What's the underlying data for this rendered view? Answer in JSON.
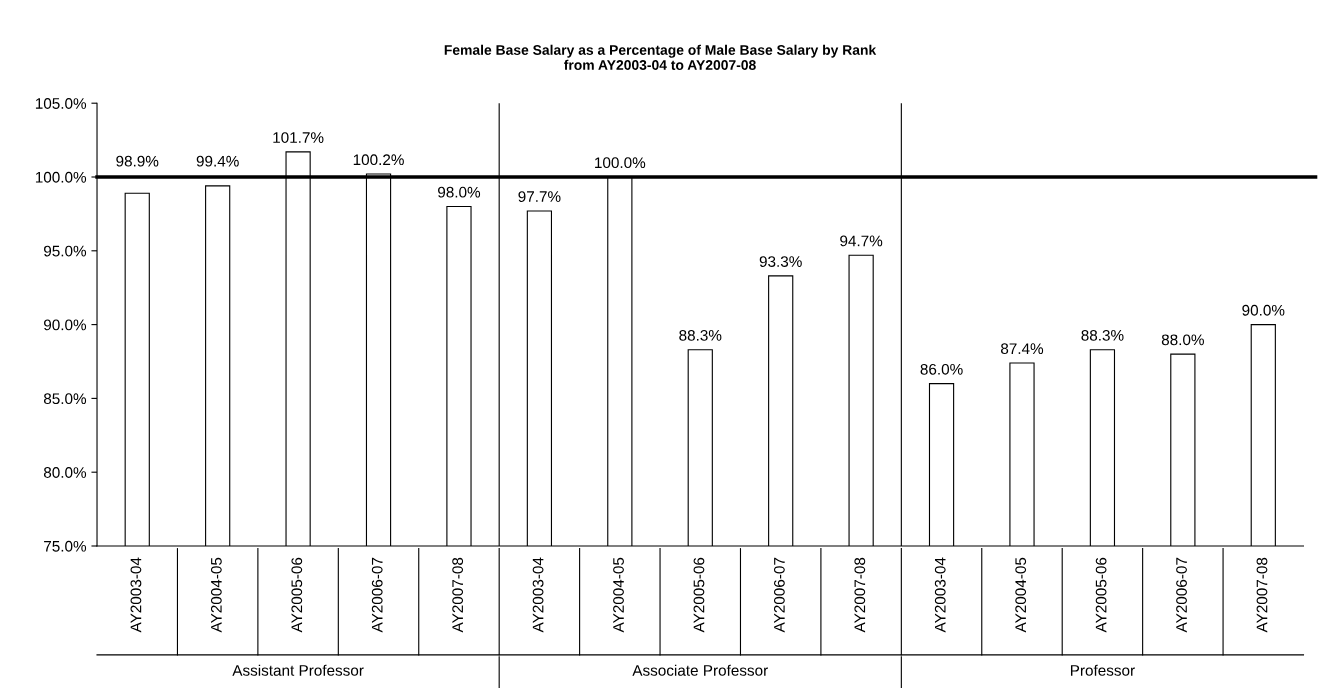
{
  "chart_data": {
    "type": "bar",
    "title": "Female Base Salary as a Percentage of Male Base Salary by Rank\nfrom AY2003-04 to AY2007-08",
    "categories": [
      "AY2003-04",
      "AY2004-05",
      "AY2005-06",
      "AY2006-07",
      "AY2007-08",
      "AY2003-04",
      "AY2004-05",
      "AY2005-06",
      "AY2006-07",
      "AY2007-08",
      "AY2003-04",
      "AY2004-05",
      "AY2005-06",
      "AY2006-07",
      "AY2007-08"
    ],
    "values": [
      98.9,
      99.4,
      101.7,
      100.2,
      98.0,
      97.7,
      100.0,
      88.3,
      93.3,
      94.7,
      86.0,
      87.4,
      88.3,
      88.0,
      90.0
    ],
    "value_labels": [
      "98.9%",
      "99.4%",
      "101.7%",
      "100.2%",
      "98.0%",
      "97.7%",
      "100.0%",
      "88.3%",
      "93.3%",
      "94.7%",
      "86.0%",
      "87.4%",
      "88.3%",
      "88.0%",
      "90.0%"
    ],
    "color": "#ffffff",
    "ylim": [
      75,
      105
    ],
    "yticks": [
      {
        "value": 75,
        "label": "75.0%"
      },
      {
        "value": 80,
        "label": "80.0%"
      },
      {
        "value": 85,
        "label": "85.0%"
      },
      {
        "value": 90,
        "label": "90.0%"
      },
      {
        "value": 95,
        "label": "95.0%"
      },
      {
        "value": 100,
        "label": "100.0%"
      },
      {
        "value": 105,
        "label": "105.0%"
      }
    ],
    "ref_lines": [
      {
        "axis": "y",
        "value": 100,
        "color": "#000000",
        "line_style": "solid"
      }
    ],
    "annotations": [
      "Assistant Professor",
      "Associate Professor",
      "Professor"
    ],
    "grid": false
  }
}
